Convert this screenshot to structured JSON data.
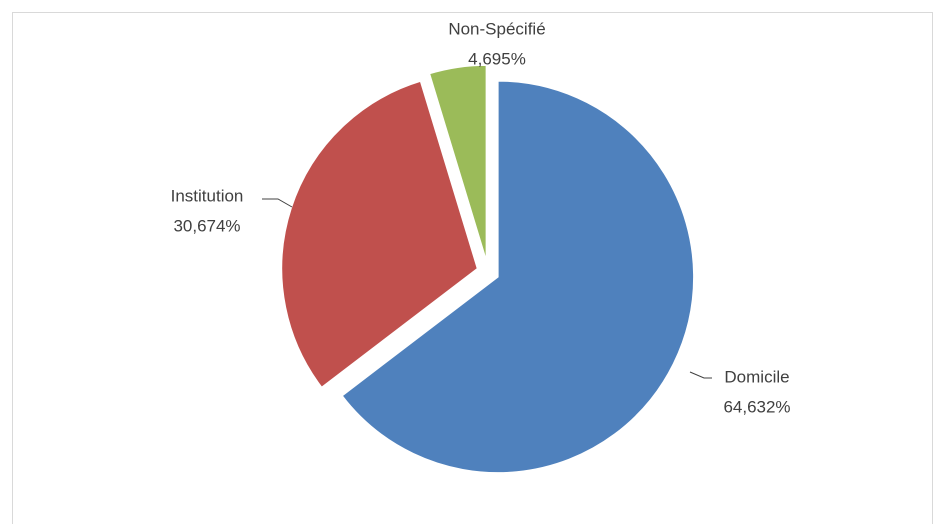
{
  "chart_data": {
    "type": "pie",
    "categories": [
      "Domicile",
      "Institution",
      "Non-Spécifié"
    ],
    "values": [
      64.632,
      30.674,
      4.695
    ],
    "value_labels": [
      "64,632%",
      "30,674%",
      "4,695%"
    ],
    "colors": [
      "#4f81bd",
      "#c0504d",
      "#9bbb59"
    ]
  }
}
